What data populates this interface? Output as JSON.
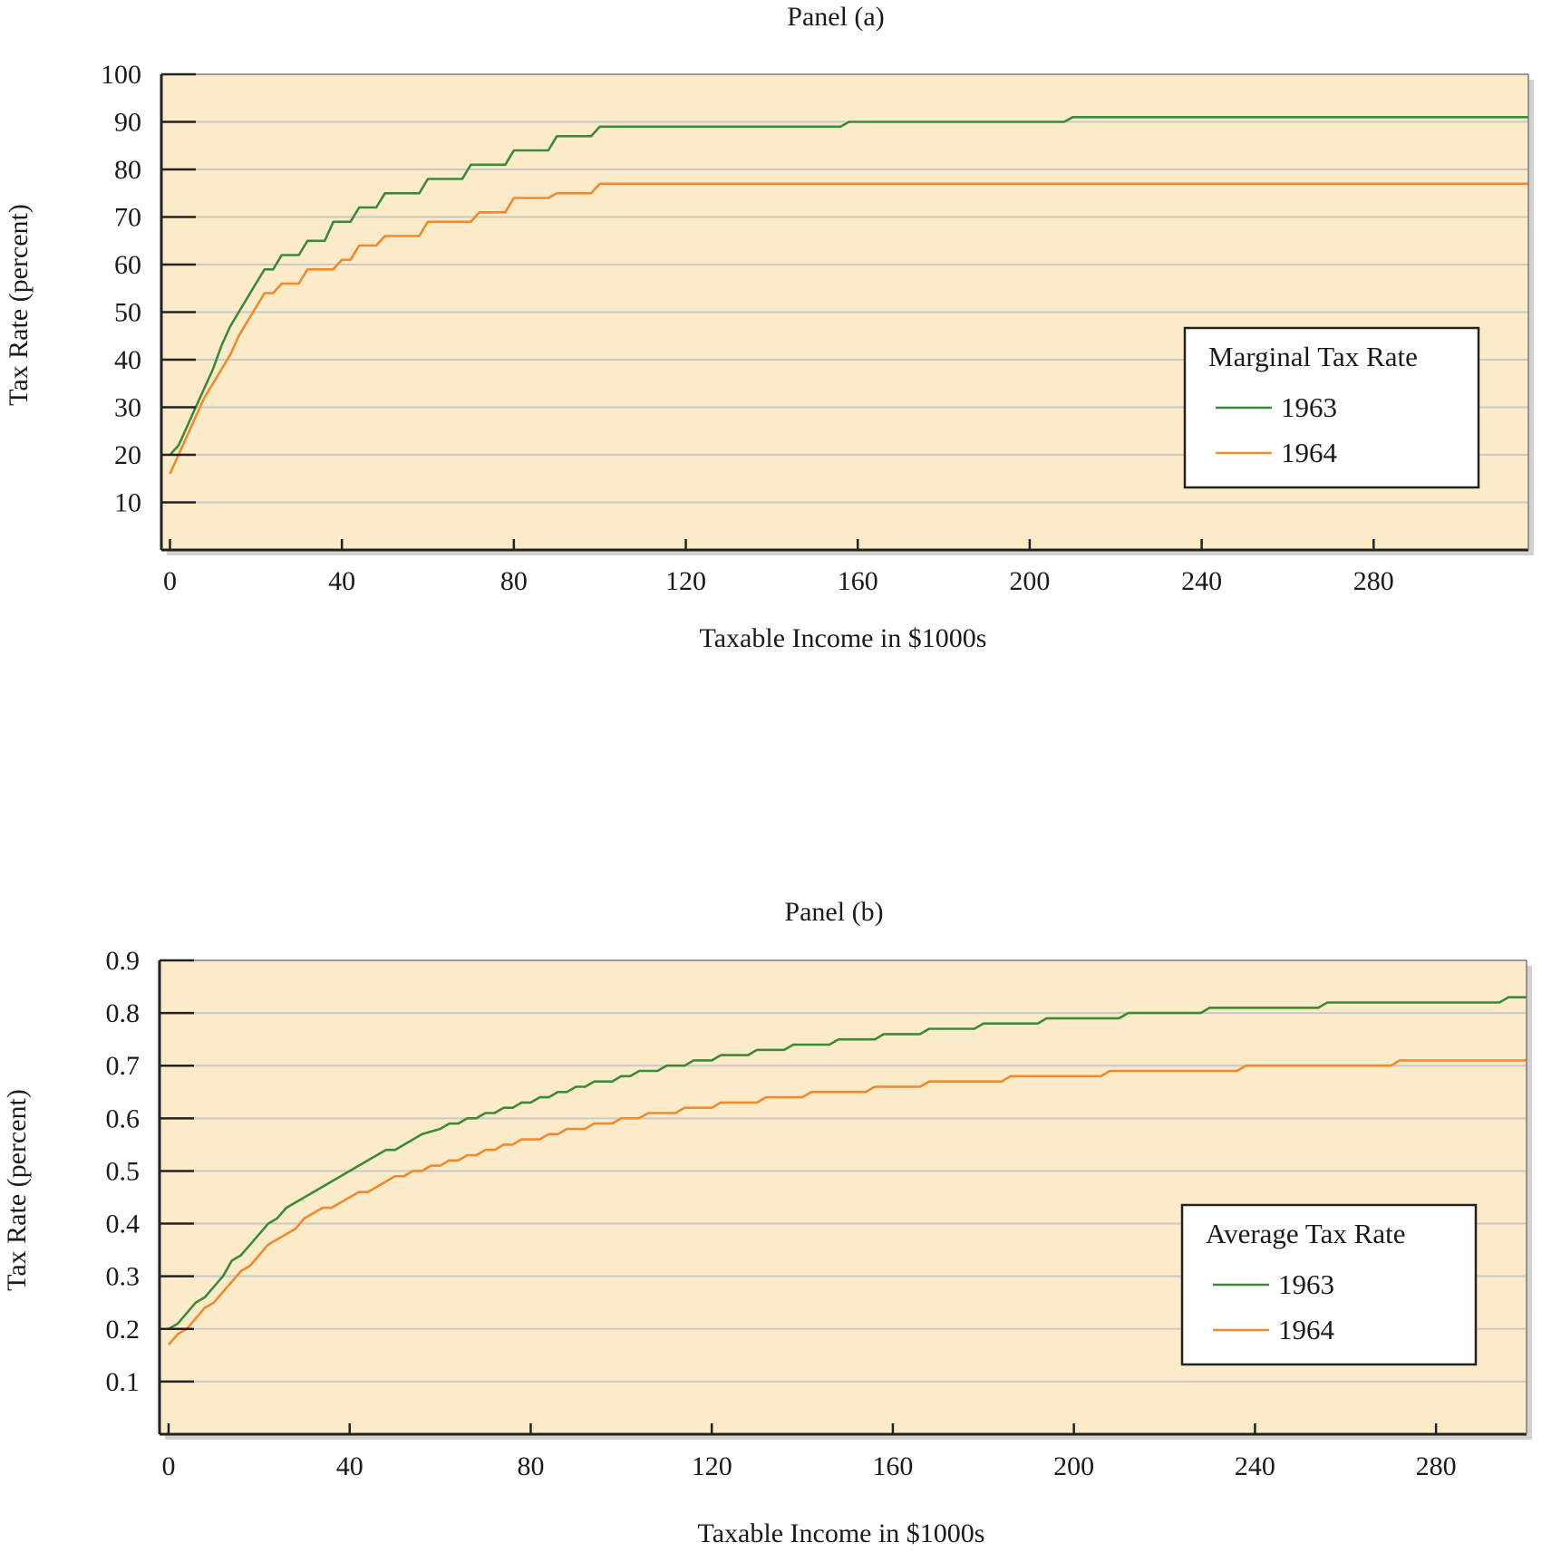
{
  "colors": {
    "plot_background": "#fcebc8",
    "gridline": "#c9c9c9",
    "series_1963": "#3a8a3a",
    "series_1964": "#f08a2c",
    "frame": "#222222"
  },
  "chart_data": [
    {
      "type": "line",
      "title": "Panel (a)",
      "xlabel": "Taxable Income in $1000s",
      "ylabel": "Tax Rate (percent)",
      "xlim": [
        -2,
        316
      ],
      "ylim": [
        0,
        100
      ],
      "x_ticks": [
        0,
        40,
        80,
        120,
        160,
        200,
        240,
        280
      ],
      "y_ticks": [
        10,
        20,
        30,
        40,
        50,
        60,
        70,
        80,
        90,
        100
      ],
      "grid": true,
      "legend": {
        "title": "Marginal Tax Rate",
        "placement": "right"
      },
      "series": [
        {
          "name": "1963",
          "step": true,
          "points": [
            [
              0,
              20
            ],
            [
              2,
              22
            ],
            [
              4,
              26
            ],
            [
              6,
              30
            ],
            [
              8,
              34
            ],
            [
              10,
              38
            ],
            [
              12,
              43
            ],
            [
              14,
              47
            ],
            [
              16,
              50
            ],
            [
              18,
              53
            ],
            [
              20,
              56
            ],
            [
              22,
              59
            ],
            [
              24,
              59
            ],
            [
              26,
              62
            ],
            [
              30,
              62
            ],
            [
              32,
              65
            ],
            [
              36,
              65
            ],
            [
              38,
              69
            ],
            [
              42,
              69
            ],
            [
              44,
              72
            ],
            [
              48,
              72
            ],
            [
              50,
              75
            ],
            [
              58,
              75
            ],
            [
              60,
              78
            ],
            [
              68,
              78
            ],
            [
              70,
              81
            ],
            [
              78,
              81
            ],
            [
              80,
              84
            ],
            [
              88,
              84
            ],
            [
              90,
              87
            ],
            [
              98,
              87
            ],
            [
              100,
              89
            ],
            [
              156,
              89
            ],
            [
              158,
              90
            ],
            [
              208,
              90
            ],
            [
              210,
              91
            ],
            [
              316,
              91
            ]
          ]
        },
        {
          "name": "1964",
          "step": true,
          "points": [
            [
              0,
              16
            ],
            [
              2,
              20
            ],
            [
              4,
              24
            ],
            [
              6,
              28
            ],
            [
              8,
              32
            ],
            [
              10,
              35
            ],
            [
              12,
              38
            ],
            [
              14,
              41
            ],
            [
              16,
              45
            ],
            [
              18,
              48
            ],
            [
              20,
              51
            ],
            [
              22,
              54
            ],
            [
              24,
              54
            ],
            [
              26,
              56
            ],
            [
              30,
              56
            ],
            [
              32,
              59
            ],
            [
              38,
              59
            ],
            [
              40,
              61
            ],
            [
              42,
              61
            ],
            [
              44,
              64
            ],
            [
              48,
              64
            ],
            [
              50,
              66
            ],
            [
              58,
              66
            ],
            [
              60,
              69
            ],
            [
              70,
              69
            ],
            [
              72,
              71
            ],
            [
              78,
              71
            ],
            [
              80,
              74
            ],
            [
              88,
              74
            ],
            [
              90,
              75
            ],
            [
              98,
              75
            ],
            [
              100,
              77
            ],
            [
              316,
              77
            ]
          ]
        }
      ]
    },
    {
      "type": "line",
      "title": "Panel (b)",
      "xlabel": "Taxable Income in $1000s",
      "ylabel": "Tax Rate (percent)",
      "xlim": [
        -2,
        300
      ],
      "ylim": [
        0,
        0.9
      ],
      "x_ticks": [
        0,
        40,
        80,
        120,
        160,
        200,
        240,
        280
      ],
      "y_ticks": [
        0.1,
        0.2,
        0.3,
        0.4,
        0.5,
        0.6,
        0.7,
        0.8,
        0.9
      ],
      "grid": true,
      "legend": {
        "title": "Average Tax Rate",
        "placement": "right"
      },
      "series": [
        {
          "name": "1963",
          "step": true,
          "points": [
            [
              0,
              0.2
            ],
            [
              2,
              0.21
            ],
            [
              4,
              0.23
            ],
            [
              6,
              0.25
            ],
            [
              8,
              0.26
            ],
            [
              10,
              0.28
            ],
            [
              12,
              0.3
            ],
            [
              14,
              0.33
            ],
            [
              16,
              0.34
            ],
            [
              18,
              0.36
            ],
            [
              20,
              0.38
            ],
            [
              22,
              0.4
            ],
            [
              24,
              0.41
            ],
            [
              26,
              0.43
            ],
            [
              30,
              0.45
            ],
            [
              36,
              0.48
            ],
            [
              42,
              0.51
            ],
            [
              48,
              0.54
            ],
            [
              50,
              0.54
            ],
            [
              54,
              0.56
            ],
            [
              56,
              0.57
            ],
            [
              60,
              0.58
            ],
            [
              62,
              0.59
            ],
            [
              64,
              0.59
            ],
            [
              66,
              0.6
            ],
            [
              68,
              0.6
            ],
            [
              70,
              0.61
            ],
            [
              72,
              0.61
            ],
            [
              74,
              0.62
            ],
            [
              76,
              0.62
            ],
            [
              78,
              0.63
            ],
            [
              80,
              0.63
            ],
            [
              82,
              0.64
            ],
            [
              84,
              0.64
            ],
            [
              86,
              0.65
            ],
            [
              88,
              0.65
            ],
            [
              90,
              0.66
            ],
            [
              92,
              0.66
            ],
            [
              94,
              0.67
            ],
            [
              98,
              0.67
            ],
            [
              100,
              0.68
            ],
            [
              102,
              0.68
            ],
            [
              104,
              0.69
            ],
            [
              108,
              0.69
            ],
            [
              110,
              0.7
            ],
            [
              114,
              0.7
            ],
            [
              116,
              0.71
            ],
            [
              120,
              0.71
            ],
            [
              122,
              0.72
            ],
            [
              128,
              0.72
            ],
            [
              130,
              0.73
            ],
            [
              136,
              0.73
            ],
            [
              138,
              0.74
            ],
            [
              146,
              0.74
            ],
            [
              148,
              0.75
            ],
            [
              156,
              0.75
            ],
            [
              158,
              0.76
            ],
            [
              166,
              0.76
            ],
            [
              168,
              0.77
            ],
            [
              178,
              0.77
            ],
            [
              180,
              0.78
            ],
            [
              192,
              0.78
            ],
            [
              194,
              0.79
            ],
            [
              210,
              0.79
            ],
            [
              212,
              0.8
            ],
            [
              228,
              0.8
            ],
            [
              230,
              0.81
            ],
            [
              254,
              0.81
            ],
            [
              256,
              0.82
            ],
            [
              294,
              0.82
            ],
            [
              296,
              0.83
            ],
            [
              300,
              0.83
            ]
          ]
        },
        {
          "name": "1964",
          "step": true,
          "points": [
            [
              0,
              0.17
            ],
            [
              2,
              0.19
            ],
            [
              4,
              0.2
            ],
            [
              6,
              0.22
            ],
            [
              8,
              0.24
            ],
            [
              10,
              0.25
            ],
            [
              12,
              0.27
            ],
            [
              14,
              0.29
            ],
            [
              16,
              0.31
            ],
            [
              18,
              0.32
            ],
            [
              20,
              0.34
            ],
            [
              22,
              0.36
            ],
            [
              24,
              0.37
            ],
            [
              28,
              0.39
            ],
            [
              30,
              0.41
            ],
            [
              34,
              0.43
            ],
            [
              36,
              0.43
            ],
            [
              40,
              0.45
            ],
            [
              42,
              0.46
            ],
            [
              44,
              0.46
            ],
            [
              48,
              0.48
            ],
            [
              50,
              0.49
            ],
            [
              52,
              0.49
            ],
            [
              54,
              0.5
            ],
            [
              56,
              0.5
            ],
            [
              58,
              0.51
            ],
            [
              60,
              0.51
            ],
            [
              62,
              0.52
            ],
            [
              64,
              0.52
            ],
            [
              66,
              0.53
            ],
            [
              68,
              0.53
            ],
            [
              70,
              0.54
            ],
            [
              72,
              0.54
            ],
            [
              74,
              0.55
            ],
            [
              76,
              0.55
            ],
            [
              78,
              0.56
            ],
            [
              82,
              0.56
            ],
            [
              84,
              0.57
            ],
            [
              86,
              0.57
            ],
            [
              88,
              0.58
            ],
            [
              92,
              0.58
            ],
            [
              94,
              0.59
            ],
            [
              98,
              0.59
            ],
            [
              100,
              0.6
            ],
            [
              104,
              0.6
            ],
            [
              106,
              0.61
            ],
            [
              112,
              0.61
            ],
            [
              114,
              0.62
            ],
            [
              120,
              0.62
            ],
            [
              122,
              0.63
            ],
            [
              130,
              0.63
            ],
            [
              132,
              0.64
            ],
            [
              140,
              0.64
            ],
            [
              142,
              0.65
            ],
            [
              154,
              0.65
            ],
            [
              156,
              0.66
            ],
            [
              166,
              0.66
            ],
            [
              168,
              0.67
            ],
            [
              184,
              0.67
            ],
            [
              186,
              0.68
            ],
            [
              206,
              0.68
            ],
            [
              208,
              0.69
            ],
            [
              236,
              0.69
            ],
            [
              238,
              0.7
            ],
            [
              270,
              0.7
            ],
            [
              272,
              0.71
            ],
            [
              300,
              0.71
            ]
          ]
        }
      ]
    }
  ]
}
